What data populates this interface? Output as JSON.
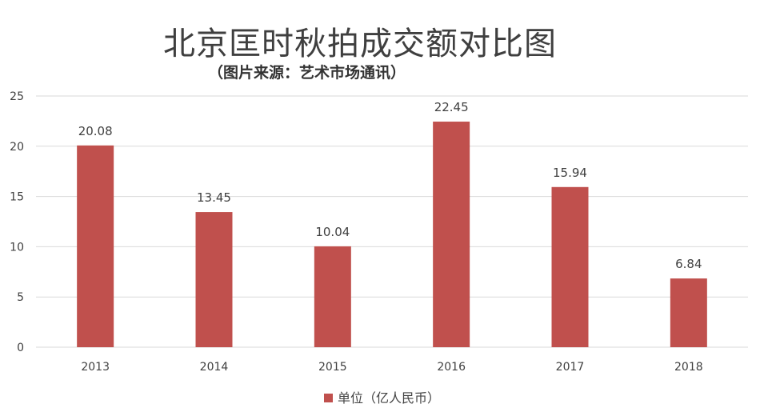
{
  "title": "北京匡时秋拍成交额对比图",
  "subtitle": "（图片来源：艺术市场通讯）",
  "colors": {
    "bar": "#c0504d",
    "grid": "#d9d9d9",
    "axis_text": "#404040"
  },
  "chart_data": {
    "type": "bar",
    "categories": [
      "2013",
      "2014",
      "2015",
      "2016",
      "2017",
      "2018"
    ],
    "series": [
      {
        "name": "单位（亿人民币）",
        "values": [
          20.08,
          13.45,
          10.04,
          22.45,
          15.94,
          6.84
        ]
      }
    ],
    "data_labels": [
      "20.08",
      "13.45",
      "10.04",
      "22.45",
      "15.94",
      "6.84"
    ],
    "yticks": [
      0,
      5,
      10,
      15,
      20,
      25
    ],
    "ylim": [
      0,
      25
    ],
    "grid": true,
    "legend_position": "bottom"
  }
}
